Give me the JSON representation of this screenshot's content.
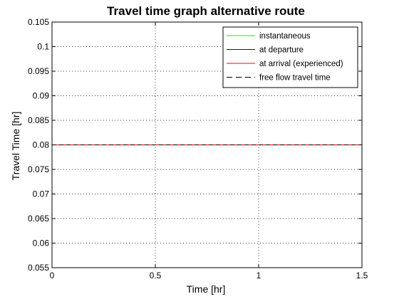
{
  "chart_data": {
    "type": "line",
    "title": "Travel time graph alternative route",
    "xlabel": "Time [hr]",
    "ylabel": "Travel Time [hr]",
    "xlim": [
      0,
      1.5
    ],
    "ylim": [
      0.055,
      0.105
    ],
    "x_ticks": [
      0,
      0.5,
      1,
      1.5
    ],
    "x_tick_labels": [
      "0",
      "0.5",
      "1",
      "1.5"
    ],
    "y_ticks": [
      0.055,
      0.06,
      0.065,
      0.07,
      0.075,
      0.08,
      0.085,
      0.09,
      0.095,
      0.1,
      0.105
    ],
    "y_tick_labels": [
      "0.055",
      "0.06",
      "0.065",
      "0.07",
      "0.075",
      "0.08",
      "0.085",
      "0.09",
      "0.095",
      "0.1",
      "0.105"
    ],
    "grid": true,
    "legend_position": "top-right",
    "series": [
      {
        "name": "instantaneous",
        "color": "#00ff00",
        "style": "solid",
        "x": [
          0,
          1.5
        ],
        "y": [
          0.08,
          0.08
        ]
      },
      {
        "name": "at departure",
        "color": "#0000ff",
        "style": "solid",
        "x": [
          0,
          1.5
        ],
        "y": [
          0.08,
          0.08
        ]
      },
      {
        "name": "at arrival (experienced)",
        "color": "#ff0000",
        "style": "solid",
        "x": [
          0,
          1.5
        ],
        "y": [
          0.08,
          0.08
        ]
      },
      {
        "name": "free flow travel time",
        "color": "#000000",
        "style": "dashed",
        "x": [
          0,
          1.5
        ],
        "y": [
          0.08,
          0.08
        ]
      }
    ]
  }
}
